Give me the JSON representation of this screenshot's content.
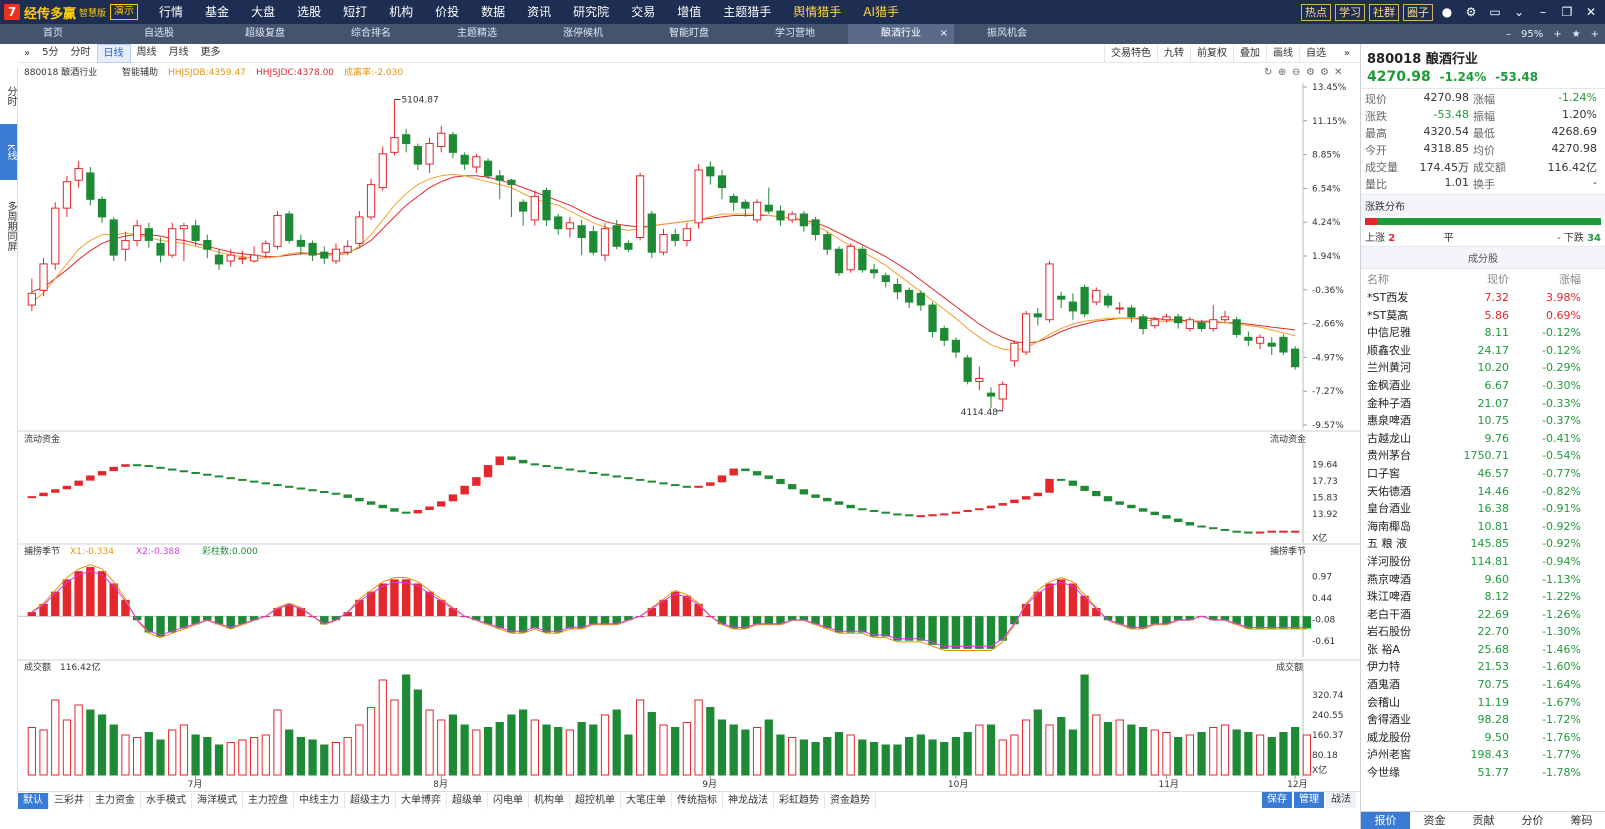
{
  "app": {
    "logo_mark": "7",
    "name": "经传多赢",
    "version": "智慧版",
    "demo": "演示"
  },
  "main_menu": [
    "行情",
    "基金",
    "大盘",
    "选股",
    "短打",
    "机构",
    "价投",
    "数据",
    "资讯",
    "研究院",
    "交易",
    "增值",
    "主题猎手",
    "舆情猎手",
    "AI猎手"
  ],
  "tools": {
    "hot": "热点",
    "study": "学习",
    "community": "社群",
    "circle": "圈子",
    "zoom": "95%"
  },
  "sec_tabs": [
    "首页",
    "自选股",
    "超级复盘",
    "综合排名",
    "主题精选",
    "涨停候机",
    "智能盯盘",
    "学习营地",
    "酿酒行业",
    "振风机会"
  ],
  "sec_active": "酿酒行业",
  "left_rail": [
    "分时",
    "K线",
    "多周期同屏"
  ],
  "chart_toolbar": {
    "left": [
      "5分",
      "分时",
      "日线",
      "周线",
      "月线",
      "更多"
    ],
    "active": "日线",
    "right": [
      "交易特色",
      "九转",
      "前复权",
      "叠加",
      "画线",
      "自选"
    ]
  },
  "price_legend": {
    "name": "880018 酿酒行业",
    "smart": "智能辅助",
    "ma1": "HHJSJDB:4359.47",
    "ma2": "HHJSJDC:4378.00",
    "diff": "成离率:-2.030"
  },
  "price_axis": [
    "13.45%",
    "11.15%",
    "8.85%",
    "6.54%",
    "4.24%",
    "1.94%",
    "-0.36%",
    "-2.66%",
    "-4.97%",
    "-7.27%",
    "-9.57%"
  ],
  "price_marks": {
    "high": "5104.87",
    "low": "4114.48"
  },
  "flow_panel": {
    "title": "流动资金",
    "axis": [
      "19.64",
      "17.73",
      "15.83",
      "13.92"
    ],
    "unit": "X亿"
  },
  "macd_panel": {
    "title": "捕捞季节",
    "x1": "X1:-0.334",
    "x2": "X2:-0.388",
    "bar": "彩柱数:0.000",
    "axis": [
      "0.97",
      "0.44",
      "-0.08",
      "-0.61"
    ]
  },
  "vol_panel": {
    "title": "成交额",
    "value": "116.42亿",
    "axis": [
      "320.74",
      "240.55",
      "160.37",
      "80.18"
    ],
    "unit": "X亿"
  },
  "months": [
    "7月",
    "8月",
    "9月",
    "10月",
    "11月",
    "12月"
  ],
  "quote": {
    "code": "880018",
    "name": "酿酒行业",
    "price": "4270.98",
    "pct": "-1.24%",
    "chg": "-53.48",
    "rows": [
      [
        "现价",
        "4270.98",
        "涨幅",
        "-1.24%"
      ],
      [
        "涨跌",
        "-53.48",
        "振幅",
        "1.20%"
      ],
      [
        "最高",
        "4320.54",
        "最低",
        "4268.69"
      ],
      [
        "今开",
        "4318.85",
        "均价",
        "4270.98"
      ],
      [
        "成交量",
        "174.45万",
        "成交额",
        "116.42亿"
      ],
      [
        "量比",
        "1.01",
        "换手",
        "-"
      ]
    ],
    "dist_title": "涨跌分布",
    "up_label": "上涨",
    "up": "2",
    "flat_label": "平",
    "flat": "-",
    "down_label": "下跌",
    "down": "34",
    "cons_title": "成分股",
    "cons_head": [
      "名称",
      "现价",
      "涨幅"
    ],
    "cons": [
      [
        "*ST西发",
        "7.32",
        "3.98%"
      ],
      [
        "*ST莫高",
        "5.86",
        "0.69%"
      ],
      [
        "中信尼雅",
        "8.11",
        "-0.12%"
      ],
      [
        "顺鑫农业",
        "24.17",
        "-0.12%"
      ],
      [
        "兰州黄河",
        "10.20",
        "-0.29%"
      ],
      [
        "金枫酒业",
        "6.67",
        "-0.30%"
      ],
      [
        "金种子酒",
        "21.07",
        "-0.33%"
      ],
      [
        "惠泉啤酒",
        "10.75",
        "-0.37%"
      ],
      [
        "古越龙山",
        "9.76",
        "-0.41%"
      ],
      [
        "贵州茅台",
        "1750.71",
        "-0.54%"
      ],
      [
        "口子窖",
        "46.57",
        "-0.77%"
      ],
      [
        "天佑德酒",
        "14.46",
        "-0.82%"
      ],
      [
        "皇台酒业",
        "16.38",
        "-0.91%"
      ],
      [
        "海南椰岛",
        "10.81",
        "-0.92%"
      ],
      [
        "五 粮 液",
        "145.85",
        "-0.92%"
      ],
      [
        "洋河股份",
        "114.81",
        "-0.94%"
      ],
      [
        "燕京啤酒",
        "9.60",
        "-1.13%"
      ],
      [
        "珠江啤酒",
        "8.12",
        "-1.22%"
      ],
      [
        "老白干酒",
        "22.69",
        "-1.26%"
      ],
      [
        "岩石股份",
        "22.70",
        "-1.30%"
      ],
      [
        "张 裕A",
        "25.68",
        "-1.46%"
      ],
      [
        "伊力特",
        "21.53",
        "-1.60%"
      ],
      [
        "酒鬼酒",
        "70.75",
        "-1.64%"
      ],
      [
        "会稽山",
        "11.19",
        "-1.67%"
      ],
      [
        "舍得酒业",
        "98.28",
        "-1.72%"
      ],
      [
        "威龙股份",
        "9.50",
        "-1.76%"
      ],
      [
        "泸州老窖",
        "198.43",
        "-1.77%"
      ],
      [
        "今世缘",
        "51.77",
        "-1.78%"
      ]
    ],
    "bottom_tabs": [
      "报价",
      "资金",
      "贡献",
      "分价",
      "筹码"
    ]
  },
  "bottom_tabs": [
    "默认",
    "三彩井",
    "主力资金",
    "水手模式",
    "海洋模式",
    "主力控盘",
    "中线主力",
    "超级主力",
    "大单博弈",
    "超级单",
    "闪电单",
    "机构单",
    "超控机单",
    "大笔庄单",
    "传统指标",
    "神龙战法",
    "彩虹趋势",
    "资金趋势"
  ],
  "bottom_right": [
    "保存",
    "管理",
    "战法"
  ],
  "chart_data": {
    "type": "candlestick",
    "x_range": [
      "7月",
      "12月"
    ],
    "y_pct_range": [
      "-9.57%",
      "13.45%"
    ],
    "price_high": "5104.87",
    "price_low": "4114.48",
    "candles_pct": [
      [
        -0.6,
        -1.4,
        0.4,
        -1.8
      ],
      [
        1.4,
        -0.4,
        1.8,
        -0.8
      ],
      [
        5.2,
        1.4,
        5.6,
        1.0
      ],
      [
        7.0,
        5.2,
        7.4,
        4.6
      ],
      [
        7.9,
        7.1,
        8.4,
        6.6
      ],
      [
        5.8,
        7.6,
        8.0,
        5.4
      ],
      [
        4.6,
        5.8,
        6.0,
        4.2
      ],
      [
        2.0,
        4.4,
        4.6,
        1.6
      ],
      [
        3.0,
        2.4,
        3.6,
        1.6
      ],
      [
        4.0,
        3.0,
        4.4,
        2.6
      ],
      [
        3.0,
        3.8,
        4.2,
        2.5
      ],
      [
        2.0,
        2.8,
        3.2,
        1.5
      ],
      [
        3.8,
        2.0,
        4.2,
        1.8
      ],
      [
        4.0,
        3.8,
        4.2,
        1.6
      ],
      [
        3.0,
        4.0,
        4.4,
        2.6
      ],
      [
        2.4,
        3.0,
        3.4,
        1.8
      ],
      [
        1.4,
        2.0,
        2.4,
        1.0
      ],
      [
        2.0,
        1.6,
        2.4,
        1.2
      ],
      [
        1.8,
        1.8,
        2.3,
        1.4
      ],
      [
        2.0,
        1.6,
        2.6,
        1.5
      ],
      [
        2.8,
        2.2,
        3.0,
        1.8
      ],
      [
        4.7,
        2.6,
        5.0,
        2.4
      ],
      [
        3.0,
        4.8,
        5.0,
        2.8
      ],
      [
        2.6,
        3.0,
        3.4,
        2.0
      ],
      [
        2.0,
        2.8,
        3.0,
        1.6
      ],
      [
        1.8,
        2.2,
        2.6,
        1.4
      ],
      [
        2.4,
        1.6,
        2.8,
        1.4
      ],
      [
        2.6,
        2.2,
        3.0,
        2.0
      ],
      [
        4.6,
        2.8,
        5.0,
        2.6
      ],
      [
        6.8,
        4.6,
        7.2,
        4.4
      ],
      [
        8.9,
        6.6,
        9.4,
        6.4
      ],
      [
        10.0,
        9.0,
        12.6,
        8.8
      ],
      [
        9.6,
        10.2,
        10.6,
        9.0
      ],
      [
        8.2,
        9.4,
        9.6,
        7.8
      ],
      [
        9.6,
        8.2,
        10.0,
        7.6
      ],
      [
        10.3,
        9.4,
        10.8,
        9.0
      ],
      [
        9.0,
        10.2,
        10.4,
        8.6
      ],
      [
        8.2,
        8.8,
        9.0,
        7.8
      ],
      [
        8.7,
        8.0,
        8.9,
        7.6
      ],
      [
        7.4,
        8.4,
        8.6,
        7.2
      ],
      [
        7.1,
        7.4,
        7.8,
        5.8
      ],
      [
        6.8,
        7.1,
        7.2,
        4.6
      ],
      [
        5.0,
        5.6,
        5.8,
        4.0
      ],
      [
        6.0,
        4.4,
        6.4,
        4.0
      ],
      [
        4.4,
        6.4,
        6.6,
        4.0
      ],
      [
        3.8,
        4.6,
        4.8,
        3.4
      ],
      [
        4.2,
        3.8,
        4.6,
        3.2
      ],
      [
        3.2,
        4.0,
        4.4,
        2.0
      ],
      [
        2.2,
        3.6,
        4.0,
        2.0
      ],
      [
        3.8,
        2.0,
        4.2,
        1.6
      ],
      [
        2.6,
        4.0,
        4.4,
        2.4
      ],
      [
        2.4,
        2.8,
        3.0,
        2.2
      ],
      [
        7.4,
        3.2,
        7.6,
        3.0
      ],
      [
        2.2,
        4.8,
        5.0,
        1.8
      ],
      [
        3.4,
        2.2,
        3.8,
        2.0
      ],
      [
        3.0,
        3.4,
        3.8,
        2.6
      ],
      [
        3.8,
        3.0,
        4.2,
        2.6
      ],
      [
        7.8,
        4.2,
        8.2,
        3.8
      ],
      [
        7.4,
        8.0,
        8.4,
        6.8
      ],
      [
        6.6,
        7.4,
        7.8,
        5.8
      ],
      [
        5.6,
        6.0,
        6.2,
        5.0
      ],
      [
        5.2,
        5.6,
        5.8,
        4.6
      ],
      [
        5.6,
        4.4,
        5.8,
        4.2
      ],
      [
        5.0,
        5.4,
        6.6,
        4.8
      ],
      [
        4.4,
        5.0,
        5.4,
        4.0
      ],
      [
        4.8,
        4.4,
        5.0,
        4.2
      ],
      [
        4.0,
        4.8,
        5.0,
        3.6
      ],
      [
        3.4,
        4.4,
        4.6,
        3.0
      ],
      [
        2.4,
        3.4,
        3.6,
        2.0
      ],
      [
        0.8,
        2.4,
        2.6,
        0.6
      ],
      [
        2.6,
        1.0,
        2.8,
        0.8
      ],
      [
        1.0,
        2.4,
        2.6,
        0.8
      ],
      [
        0.8,
        1.0,
        1.4,
        0.4
      ],
      [
        0.2,
        0.6,
        0.8,
        -0.2
      ],
      [
        -0.5,
        0.0,
        0.4,
        -1.0
      ],
      [
        -1.2,
        -0.4,
        -0.2,
        -1.6
      ],
      [
        -1.4,
        -0.6,
        -0.4,
        -1.8
      ],
      [
        -3.2,
        -1.4,
        -1.2,
        -3.6
      ],
      [
        -3.8,
        -3.0,
        -2.8,
        -4.2
      ],
      [
        -4.6,
        -3.8,
        -3.6,
        -5.0
      ],
      [
        -6.6,
        -5.0,
        -4.8,
        -6.8
      ],
      [
        -6.4,
        -6.6,
        -5.6,
        -7.2
      ],
      [
        -7.6,
        -7.4,
        -7.0,
        -8.4
      ],
      [
        -6.8,
        -7.8,
        -6.6,
        -8.6
      ],
      [
        -4.0,
        -5.2,
        -3.8,
        -5.6
      ],
      [
        -2.0,
        -4.6,
        -1.8,
        -4.8
      ],
      [
        -2.2,
        -2.0,
        -1.6,
        -2.8
      ],
      [
        1.4,
        -2.4,
        1.6,
        -2.6
      ],
      [
        -1.0,
        -0.8,
        -0.5,
        -1.6
      ],
      [
        -1.8,
        -1.2,
        -0.6,
        -2.4
      ],
      [
        -2.0,
        -0.2,
        0.0,
        -2.2
      ],
      [
        -0.4,
        -1.2,
        -0.2,
        -1.4
      ],
      [
        -1.4,
        -0.8,
        -0.6,
        -1.6
      ],
      [
        -1.6,
        -1.6,
        -1.2,
        -2.0
      ],
      [
        -2.2,
        -1.6,
        -1.4,
        -2.6
      ],
      [
        -3.0,
        -2.2,
        -2.0,
        -3.4
      ],
      [
        -2.4,
        -2.8,
        -2.2,
        -3.0
      ],
      [
        -2.2,
        -2.4,
        -2.0,
        -2.6
      ],
      [
        -2.6,
        -2.2,
        -2.0,
        -3.0
      ],
      [
        -2.4,
        -3.0,
        -2.2,
        -3.2
      ],
      [
        -3.0,
        -2.6,
        -2.4,
        -3.2
      ],
      [
        -2.4,
        -3.0,
        -1.4,
        -3.2
      ],
      [
        -2.2,
        -2.4,
        -1.8,
        -2.6
      ],
      [
        -3.4,
        -2.4,
        -2.2,
        -3.6
      ],
      [
        -3.8,
        -3.6,
        -3.2,
        -4.2
      ],
      [
        -3.6,
        -4.0,
        -3.4,
        -4.4
      ],
      [
        -4.2,
        -4.0,
        -3.6,
        -4.8
      ],
      [
        -4.6,
        -3.6,
        -3.4,
        -4.8
      ],
      [
        -5.6,
        -4.4,
        -4.2,
        -5.8
      ]
    ],
    "ma1_pct": [
      -1.2,
      -0.6,
      0.4,
      1.4,
      2.4,
      3.0,
      3.4,
      3.4,
      3.5,
      3.4,
      3.2,
      3.0,
      2.9,
      2.8,
      2.6,
      2.4,
      2.2,
      2.0,
      1.9,
      1.8,
      1.8,
      1.9,
      2.1,
      2.2,
      2.1,
      2.0,
      2.0,
      2.1,
      2.6,
      3.4,
      4.4,
      5.4,
      6.2,
      6.8,
      7.2,
      7.4,
      7.5,
      7.4,
      7.2,
      7.0,
      6.8,
      6.6,
      6.2,
      5.8,
      5.6,
      5.4,
      5.0,
      4.6,
      4.2,
      3.9,
      3.8,
      3.7,
      3.8,
      4.0,
      4.1,
      4.2,
      4.3,
      4.4,
      4.6,
      4.8,
      4.8,
      4.8,
      4.8,
      4.7,
      4.6,
      4.5,
      4.3,
      4.0,
      3.6,
      3.1,
      2.6,
      2.2,
      1.8,
      1.3,
      0.7,
      0.1,
      -0.5,
      -1.1,
      -1.7,
      -2.3,
      -3.0,
      -3.6,
      -4.1,
      -4.4,
      -4.5,
      -4.3,
      -3.9,
      -3.4,
      -3.0,
      -2.7,
      -2.5,
      -2.4,
      -2.3,
      -2.3,
      -2.3,
      -2.4,
      -2.5,
      -2.5,
      -2.5,
      -2.5,
      -2.6,
      -2.6,
      -2.6,
      -2.7,
      -2.8,
      -2.9,
      -3.1,
      -3.3,
      -3.5
    ],
    "ma2_pct": [
      -0.5,
      -0.2,
      0.4,
      1.0,
      1.7,
      2.3,
      2.8,
      3.1,
      3.3,
      3.4,
      3.4,
      3.3,
      3.1,
      3.0,
      2.8,
      2.6,
      2.4,
      2.2,
      2.1,
      2.0,
      1.9,
      1.9,
      2.0,
      2.1,
      2.1,
      2.1,
      2.1,
      2.2,
      2.5,
      3.0,
      3.8,
      4.6,
      5.4,
      6.0,
      6.6,
      7.0,
      7.3,
      7.4,
      7.4,
      7.3,
      7.1,
      6.9,
      6.6,
      6.3,
      6.0,
      5.7,
      5.4,
      5.0,
      4.6,
      4.3,
      4.1,
      4.0,
      3.9,
      4.0,
      4.1,
      4.2,
      4.3,
      4.4,
      4.5,
      4.6,
      4.7,
      4.7,
      4.7,
      4.7,
      4.6,
      4.5,
      4.4,
      4.2,
      3.9,
      3.5,
      3.1,
      2.7,
      2.3,
      1.9,
      1.4,
      0.9,
      0.3,
      -0.3,
      -0.9,
      -1.5,
      -2.1,
      -2.7,
      -3.2,
      -3.6,
      -3.9,
      -4.0,
      -3.9,
      -3.6,
      -3.2,
      -2.9,
      -2.7,
      -2.5,
      -2.4,
      -2.3,
      -2.3,
      -2.3,
      -2.3,
      -2.4,
      -2.4,
      -2.5,
      -2.5,
      -2.5,
      -2.6,
      -2.6,
      -2.7,
      -2.8,
      -2.9,
      -3.0,
      -3.1
    ],
    "flow_values": [
      16.0,
      16.4,
      16.8,
      17.2,
      17.8,
      18.4,
      18.9,
      19.4,
      19.7,
      19.6,
      19.4,
      19.2,
      19.0,
      18.8,
      18.6,
      18.4,
      18.2,
      18.0,
      17.8,
      17.6,
      17.4,
      17.2,
      17.0,
      16.8,
      16.6,
      16.4,
      16.2,
      15.8,
      15.4,
      15.0,
      14.6,
      14.2,
      14.0,
      14.4,
      14.8,
      15.4,
      16.2,
      17.2,
      18.2,
      19.6,
      20.6,
      20.2,
      19.8,
      19.6,
      19.4,
      19.2,
      19.0,
      18.8,
      18.6,
      18.4,
      18.2,
      18.0,
      17.8,
      17.6,
      17.4,
      17.2,
      17.0,
      17.2,
      17.6,
      18.4,
      19.2,
      18.9,
      18.4,
      18.0,
      17.4,
      16.8,
      16.2,
      15.8,
      15.4,
      15.0,
      14.6,
      14.4,
      14.2,
      14.0,
      13.9,
      13.8,
      13.8,
      13.9,
      14.0,
      14.2,
      14.4,
      14.6,
      14.9,
      15.2,
      15.6,
      16.0,
      16.4,
      18.0,
      17.8,
      17.2,
      16.6,
      16.0,
      15.4,
      15.0,
      14.6,
      14.2,
      13.8,
      13.4,
      13.0,
      12.6,
      12.4,
      12.2,
      12.0,
      11.9,
      11.8,
      11.9,
      12.0,
      12.0,
      12.0
    ],
    "macd_values": [
      0.1,
      0.3,
      0.6,
      0.9,
      1.1,
      1.2,
      1.1,
      0.8,
      0.4,
      -0.1,
      -0.4,
      -0.5,
      -0.4,
      -0.3,
      -0.2,
      -0.1,
      -0.2,
      -0.3,
      -0.2,
      -0.1,
      0.0,
      0.2,
      0.3,
      0.2,
      0.0,
      -0.2,
      -0.1,
      0.1,
      0.4,
      0.6,
      0.8,
      0.9,
      0.9,
      0.8,
      0.6,
      0.4,
      0.2,
      0.0,
      -0.1,
      -0.2,
      -0.3,
      -0.4,
      -0.4,
      -0.3,
      -0.4,
      -0.4,
      -0.3,
      -0.3,
      -0.2,
      -0.2,
      -0.2,
      -0.1,
      0.0,
      0.2,
      0.4,
      0.6,
      0.5,
      0.3,
      0.0,
      -0.2,
      -0.3,
      -0.3,
      -0.2,
      -0.2,
      -0.2,
      -0.1,
      -0.1,
      -0.2,
      -0.3,
      -0.4,
      -0.4,
      -0.4,
      -0.5,
      -0.5,
      -0.6,
      -0.6,
      -0.6,
      -0.7,
      -0.8,
      -0.8,
      -0.8,
      -0.8,
      -0.8,
      -0.6,
      -0.2,
      0.3,
      0.6,
      0.8,
      0.9,
      0.8,
      0.5,
      0.2,
      -0.1,
      -0.2,
      -0.3,
      -0.3,
      -0.2,
      -0.2,
      -0.1,
      -0.1,
      0.0,
      -0.1,
      -0.1,
      -0.2,
      -0.3,
      -0.3,
      -0.3,
      -0.3,
      -0.3,
      -0.3
    ],
    "volume_values": [
      190,
      180,
      300,
      220,
      280,
      260,
      240,
      200,
      160,
      150,
      170,
      140,
      180,
      200,
      160,
      150,
      120,
      130,
      140,
      150,
      160,
      260,
      180,
      150,
      140,
      120,
      130,
      150,
      200,
      270,
      380,
      300,
      400,
      340,
      260,
      220,
      240,
      200,
      180,
      190,
      210,
      240,
      260,
      220,
      200,
      190,
      180,
      210,
      200,
      240,
      260,
      160,
      300,
      250,
      200,
      190,
      210,
      300,
      270,
      220,
      200,
      180,
      190,
      220,
      160,
      150,
      140,
      130,
      150,
      170,
      160,
      140,
      130,
      120,
      120,
      150,
      160,
      140,
      130,
      150,
      170,
      200,
      200,
      140,
      160,
      220,
      260,
      200,
      230,
      180,
      400,
      240,
      210,
      220,
      200,
      190,
      180,
      170,
      150,
      160,
      170,
      190,
      200,
      180,
      170,
      160,
      150,
      170,
      190,
      160
    ],
    "volume_axis_max": "400"
  }
}
